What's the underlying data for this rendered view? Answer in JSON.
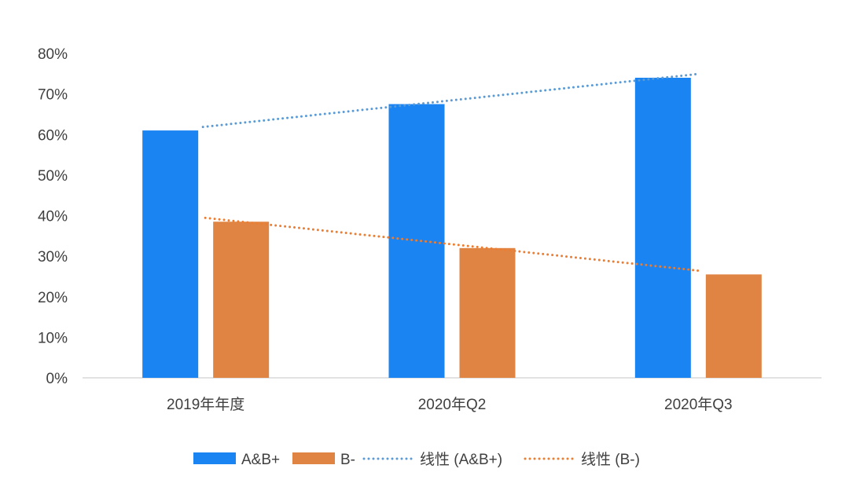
{
  "chart_data": {
    "type": "bar",
    "title": "",
    "xlabel": "",
    "ylabel": "",
    "categories": [
      "2019年年度",
      "2020年Q2",
      "2020年Q3"
    ],
    "y_ticks": [
      "0%",
      "10%",
      "20%",
      "30%",
      "40%",
      "50%",
      "60%",
      "70%",
      "80%"
    ],
    "ylim": [
      0,
      80
    ],
    "grid": false,
    "legend_position": "bottom",
    "series": [
      {
        "name": "A&B+",
        "values": [
          61,
          67.5,
          74
        ],
        "color": "#1a84f2",
        "kind": "bar"
      },
      {
        "name": "B-",
        "values": [
          38.5,
          32,
          25.5
        ],
        "color": "#e08443",
        "kind": "bar"
      }
    ],
    "trendlines": [
      {
        "name": "线性 (A&B+)",
        "of_series": "A&B+",
        "color": "#5b9bd5",
        "style": "dotted"
      },
      {
        "name": "线性 (B-)",
        "of_series": "B-",
        "color": "#ed7d31",
        "style": "dotted"
      }
    ],
    "legend": [
      "A&B+",
      "B-",
      "线性 (A&B+)",
      "线性 (B-)"
    ]
  }
}
